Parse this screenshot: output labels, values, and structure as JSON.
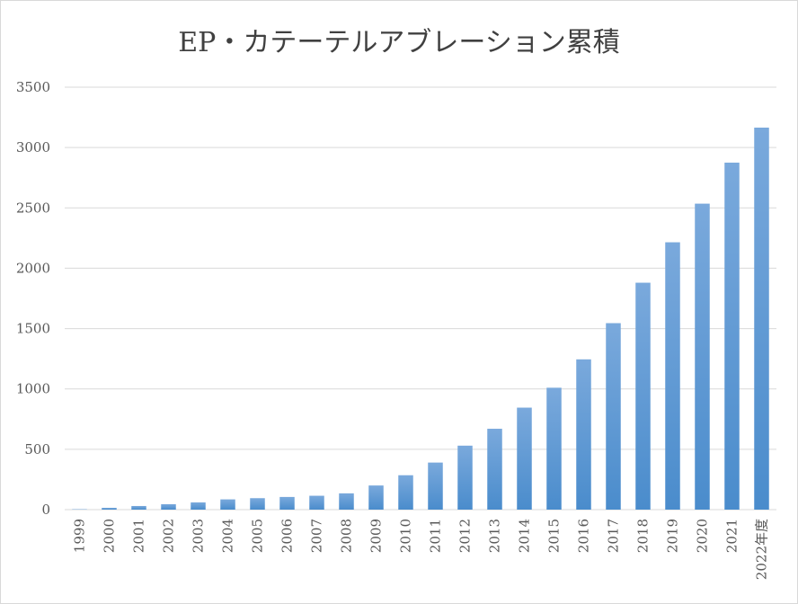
{
  "chart_data": {
    "type": "bar",
    "title": "EP・カテーテルアブレーション累積",
    "xlabel": "",
    "ylabel": "",
    "ylim": [
      0,
      3500
    ],
    "yticks": [
      0,
      500,
      1000,
      1500,
      2000,
      2500,
      3000,
      3500
    ],
    "grid": true,
    "legend": "none",
    "categories": [
      "1999",
      "2000",
      "2001",
      "2002",
      "2003",
      "2004",
      "2005",
      "2006",
      "2007",
      "2008",
      "2009",
      "2010",
      "2011",
      "2012",
      "2013",
      "2014",
      "2015",
      "2016",
      "2017",
      "2018",
      "2019",
      "2020",
      "2021",
      "2022年度"
    ],
    "values": [
      3,
      15,
      30,
      45,
      60,
      85,
      95,
      105,
      115,
      135,
      200,
      285,
      390,
      530,
      670,
      845,
      1010,
      1245,
      1545,
      1880,
      2215,
      2535,
      2875,
      3165
    ],
    "bar_color_top": "#7aa9dc",
    "bar_color_bottom": "#4a8ccc",
    "grid_color": "#d9d9d9"
  }
}
